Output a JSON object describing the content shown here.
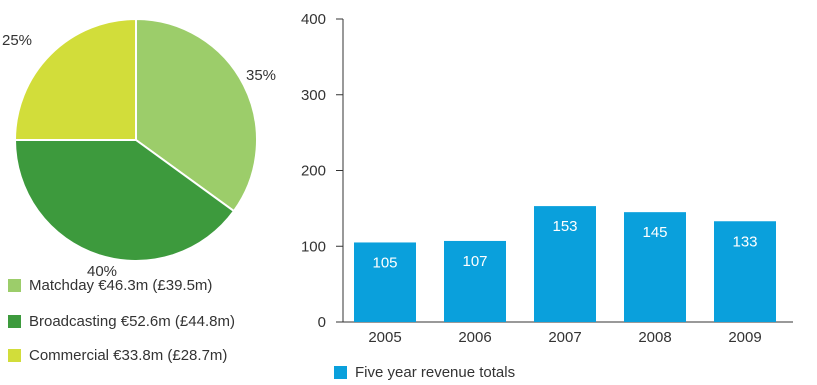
{
  "chart_data": [
    {
      "type": "pie",
      "slices": [
        {
          "label": "Matchday €46.3m (£39.5m)",
          "value": 35,
          "display": "35%",
          "color": "#9ccd6a"
        },
        {
          "label": "Broadcasting €52.6m (£44.8m)",
          "value": 40,
          "display": "40%",
          "color": "#3d9a3d"
        },
        {
          "label": "Commercial €33.8m (£28.7m)",
          "value": 25,
          "display": "25%",
          "color": "#d2dd3a"
        }
      ],
      "legend_position": "bottom-left"
    },
    {
      "type": "bar",
      "categories": [
        "2005",
        "2006",
        "2007",
        "2008",
        "2009"
      ],
      "values": [
        105,
        107,
        153,
        145,
        133
      ],
      "series_name": "Five year revenue totals",
      "color": "#0aa0dc",
      "ylim": [
        0,
        400
      ],
      "yticks": [
        0,
        100,
        200,
        300,
        400
      ],
      "grid": false,
      "legend_position": "bottom-left"
    }
  ]
}
